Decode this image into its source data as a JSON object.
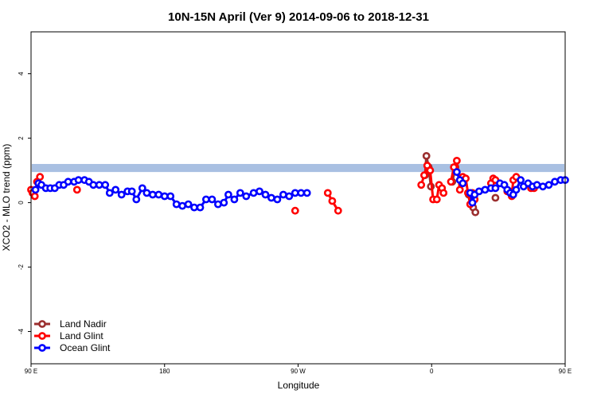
{
  "chart_data": {
    "type": "line",
    "title": "10N-15N April (Ver 9)   2014-09-06 to 2018-12-31",
    "xlabel": "Longitude",
    "ylabel": "XCO2 - MLO trend (ppm)",
    "xlim": [
      90,
      450
    ],
    "ylim": [
      -5,
      5.3
    ],
    "x_ticks": [
      {
        "value": 90,
        "label": "90 E"
      },
      {
        "value": 180,
        "label": "180"
      },
      {
        "value": 270,
        "label": "90 W"
      },
      {
        "value": 360,
        "label": "0"
      },
      {
        "value": 450,
        "label": "90 E"
      },
      {
        "value": 540,
        "label": "180"
      }
    ],
    "y_ticks": [
      {
        "value": 4,
        "label": "4"
      },
      {
        "value": 2,
        "label": "2"
      },
      {
        "value": 0,
        "label": "0"
      },
      {
        "value": -2,
        "label": "-2"
      },
      {
        "value": -4,
        "label": "-4"
      }
    ],
    "band": {
      "y_min": 0.95,
      "y_max": 1.2
    },
    "legend_position": "bottom-left",
    "series": [
      {
        "name": "Land Nadir",
        "color": "#9b2f2f",
        "segments": [
          [
            [
              355.5,
              0.85
            ],
            [
              356.5,
              1.45
            ],
            [
              358,
              1.1
            ],
            [
              359.5,
              0.5
            ]
          ],
          [
            [
              374,
              0.65
            ],
            [
              376,
              1.1
            ]
          ],
          [
            [
              385,
              0.25
            ],
            [
              387,
              0.15
            ],
            [
              388,
              -0.15
            ],
            [
              389.5,
              -0.3
            ]
          ],
          [
            [
              403,
              0.15
            ]
          ]
        ]
      },
      {
        "name": "Land Glint",
        "color": "#ff0000",
        "segments": [
          [
            [
              90,
              0.4
            ],
            [
              91,
              0.3
            ],
            [
              92.5,
              0.2
            ],
            [
              94,
              0.65
            ],
            [
              96,
              0.8
            ]
          ],
          [
            [
              121,
              0.4
            ]
          ],
          [
            [
              268,
              -0.25
            ]
          ],
          [
            [
              290,
              0.3
            ],
            [
              293,
              0.05
            ],
            [
              297,
              -0.25
            ]
          ],
          [
            [
              353,
              0.55
            ],
            [
              355,
              0.85
            ],
            [
              357,
              1.15
            ],
            [
              359,
              1.0
            ],
            [
              361,
              0.1
            ],
            [
              363.5,
              0.1
            ],
            [
              365,
              0.55
            ],
            [
              367,
              0.45
            ],
            [
              368,
              0.3
            ]
          ],
          [
            [
              373,
              0.65
            ],
            [
              375,
              1.1
            ],
            [
              377,
              1.3
            ],
            [
              379,
              0.4
            ],
            [
              381,
              0.8
            ],
            [
              383,
              0.75
            ],
            [
              384.5,
              0.3
            ],
            [
              386,
              -0.05
            ],
            [
              387.5,
              0.3
            ],
            [
              389,
              0.1
            ]
          ],
          [
            [
              400,
              0.6
            ],
            [
              401.5,
              0.75
            ],
            [
              403,
              0.7
            ]
          ],
          [
            [
              411,
              0.35
            ],
            [
              412.5,
              0.35
            ],
            [
              414,
              0.2
            ],
            [
              415,
              0.7
            ],
            [
              417,
              0.8
            ]
          ],
          [
            [
              427,
              0.45
            ],
            [
              429,
              0.45
            ]
          ]
        ]
      },
      {
        "name": "Ocean Glint",
        "color": "#0000ff",
        "segments": [
          [
            [
              93,
              0.4
            ],
            [
              95,
              0.6
            ],
            [
              97,
              0.55
            ],
            [
              100,
              0.45
            ],
            [
              103,
              0.45
            ],
            [
              106,
              0.45
            ],
            [
              109,
              0.55
            ],
            [
              112,
              0.55
            ],
            [
              115,
              0.65
            ],
            [
              119,
              0.65
            ],
            [
              122,
              0.7
            ],
            [
              126,
              0.7
            ],
            [
              129,
              0.65
            ],
            [
              132,
              0.55
            ],
            [
              136,
              0.55
            ],
            [
              140,
              0.55
            ],
            [
              143,
              0.3
            ],
            [
              147,
              0.4
            ],
            [
              151,
              0.25
            ],
            [
              155,
              0.35
            ],
            [
              158,
              0.35
            ],
            [
              161,
              0.1
            ],
            [
              165,
              0.45
            ],
            [
              168,
              0.3
            ],
            [
              172,
              0.25
            ],
            [
              176,
              0.25
            ],
            [
              180,
              0.2
            ],
            [
              184,
              0.2
            ],
            [
              188,
              -0.05
            ],
            [
              192,
              -0.1
            ],
            [
              196,
              -0.05
            ],
            [
              200,
              -0.15
            ],
            [
              204,
              -0.15
            ],
            [
              208,
              0.1
            ],
            [
              212,
              0.1
            ],
            [
              216,
              -0.05
            ],
            [
              220,
              0.0
            ],
            [
              223,
              0.25
            ],
            [
              227,
              0.1
            ],
            [
              231,
              0.3
            ],
            [
              235,
              0.2
            ],
            [
              240,
              0.3
            ],
            [
              244,
              0.35
            ],
            [
              248,
              0.25
            ],
            [
              252,
              0.15
            ],
            [
              256,
              0.1
            ],
            [
              260,
              0.25
            ],
            [
              264,
              0.2
            ],
            [
              268,
              0.3
            ],
            [
              272,
              0.3
            ],
            [
              276,
              0.3
            ]
          ],
          [
            [
              377,
              0.95
            ],
            [
              379,
              0.7
            ],
            [
              381,
              0.6
            ]
          ],
          [
            [
              386,
              0.3
            ],
            [
              387.5,
              0.0
            ],
            [
              389,
              0.25
            ],
            [
              392,
              0.35
            ],
            [
              396,
              0.4
            ],
            [
              400,
              0.45
            ],
            [
              403,
              0.45
            ],
            [
              406,
              0.6
            ],
            [
              409,
              0.55
            ],
            [
              411,
              0.4
            ],
            [
              413,
              0.3
            ],
            [
              415,
              0.25
            ],
            [
              417,
              0.4
            ],
            [
              420,
              0.7
            ],
            [
              422,
              0.5
            ],
            [
              425,
              0.6
            ],
            [
              428,
              0.5
            ],
            [
              431,
              0.55
            ],
            [
              435,
              0.5
            ],
            [
              439,
              0.55
            ],
            [
              443,
              0.65
            ],
            [
              447,
              0.7
            ],
            [
              450,
              0.7
            ]
          ]
        ]
      }
    ]
  }
}
